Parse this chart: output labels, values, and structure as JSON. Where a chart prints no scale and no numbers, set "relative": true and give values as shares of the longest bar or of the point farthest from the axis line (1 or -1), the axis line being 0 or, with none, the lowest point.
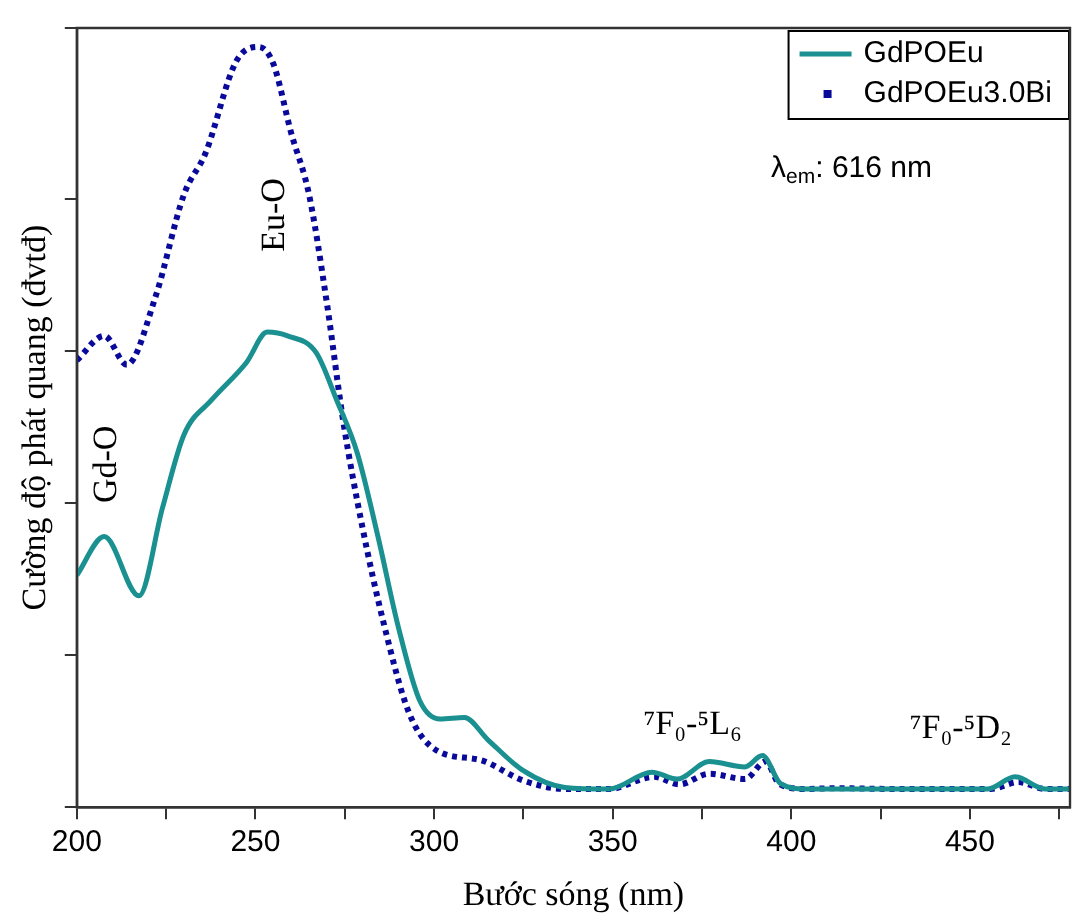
{
  "chart_data": {
    "type": "line",
    "relative": true,
    "xlabel": "Bước sóng (nm)",
    "ylabel": "Cường độ phát quang (đvtđ)",
    "xlim": [
      200,
      478
    ],
    "xticks": [
      200,
      {
        "value": 225,
        "label": null
      },
      250,
      {
        "value": 275,
        "label": null
      },
      300,
      {
        "value": 325,
        "label": null
      },
      350,
      {
        "value": 375,
        "label": null
      },
      400,
      {
        "value": 425,
        "label": null
      },
      450,
      {
        "value": 475,
        "label": null
      }
    ],
    "grid": false,
    "legend": "top right",
    "marker": "none",
    "series": [
      {
        "name": "GdPOEu",
        "color": "#1a9090",
        "line_style": "solid",
        "x": [
          200,
          207.7,
          217.4,
          224,
          230,
          237.8,
          247.5,
          253.3,
          259,
          267,
          272.7,
          278.5,
          284.3,
          290,
          296,
          301.7,
          308.5,
          315,
          325,
          336.6,
          349,
          361,
          368,
          377,
          387,
          391.9,
          397,
          404,
          430,
          455,
          462.6,
          471,
          478
        ],
        "values": [
          0.305,
          0.356,
          0.278,
          0.394,
          0.49,
          0.536,
          0.585,
          0.625,
          0.62,
          0.598,
          0.536,
          0.466,
          0.356,
          0.237,
          0.14,
          0.116,
          0.118,
          0.089,
          0.048,
          0.026,
          0.024,
          0.046,
          0.037,
          0.06,
          0.053,
          0.068,
          0.031,
          0.024,
          0.024,
          0.024,
          0.04,
          0.024,
          0.024
        ]
      },
      {
        "name": "GdPOEu3.0Bi",
        "color": "#0a0a9a",
        "line_style": "dotted",
        "x": [
          200,
          207.7,
          214,
          222,
          230,
          236,
          244.6,
          251,
          255,
          260,
          265,
          270,
          274.5,
          280,
          286,
          293,
          300.6,
          313,
          325,
          336.6,
          349,
          361.6,
          368.6,
          377,
          387,
          392.8,
          396.6,
          404,
          412,
          428,
          455.8,
          463.6,
          471,
          478
        ],
        "values": [
          0.588,
          0.62,
          0.582,
          0.671,
          0.806,
          0.86,
          0.981,
          1,
          0.978,
          0.887,
          0.806,
          0.663,
          0.51,
          0.367,
          0.24,
          0.124,
          0.075,
          0.062,
          0.035,
          0.024,
          0.024,
          0.04,
          0.03,
          0.044,
          0.037,
          0.06,
          0.031,
          0.024,
          0.025,
          0.024,
          0.024,
          0.033,
          0.024,
          0.024
        ]
      }
    ],
    "annotations": [
      "Gd-O",
      "Eu-O",
      "⁷F₀-⁵L₆",
      "⁷F₀-⁵D₂",
      "λ$_{em}$: 616 nm"
    ]
  }
}
